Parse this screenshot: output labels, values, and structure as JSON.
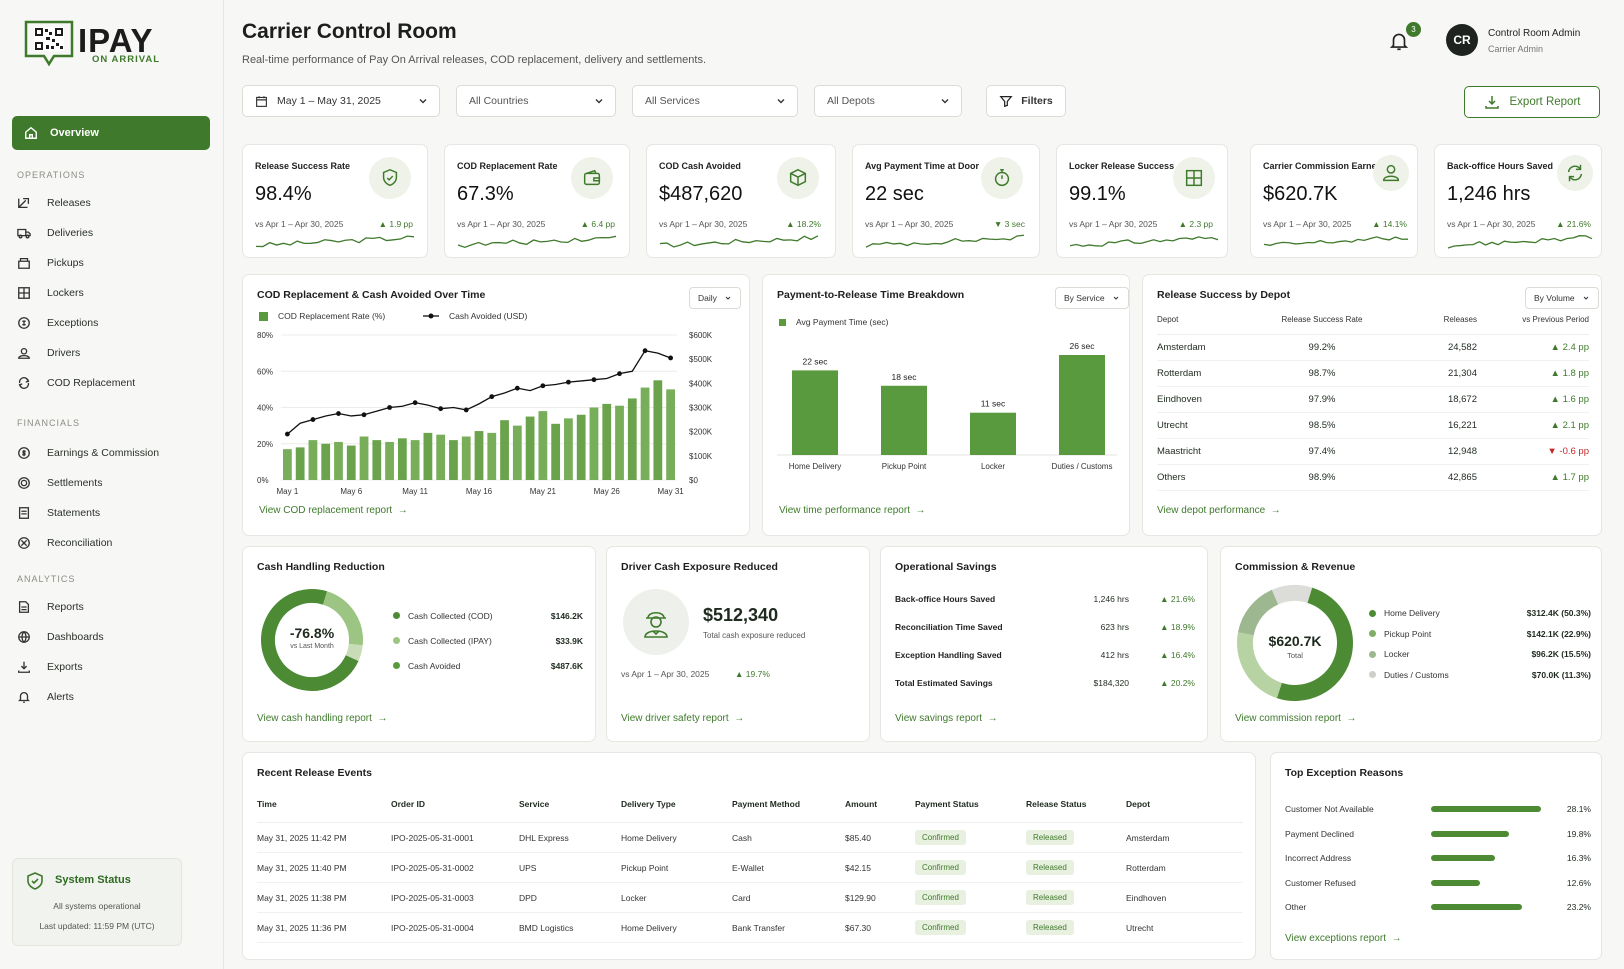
{
  "brand": {
    "name": "IPAY",
    "tagline": "ON ARRIVAL"
  },
  "nav": {
    "overview": "Overview",
    "sections": [
      {
        "label": "OPERATIONS",
        "items": [
          "Releases",
          "Deliveries",
          "Pickups",
          "Lockers",
          "Exceptions",
          "Drivers",
          "COD Replacement"
        ]
      },
      {
        "label": "FINANCIALS",
        "items": [
          "Earnings & Commission",
          "Settlements",
          "Statements",
          "Reconciliation"
        ]
      },
      {
        "label": "ANALYTICS",
        "items": [
          "Reports",
          "Dashboards",
          "Exports",
          "Alerts"
        ]
      }
    ]
  },
  "system_status": {
    "title": "System Status",
    "text": "All systems operational",
    "updated": "Last updated: 11:59 PM (UTC)"
  },
  "header": {
    "title": "Carrier Control Room",
    "subtitle": "Real-time performance of Pay On Arrival releases, COD replacement, delivery and settlements.",
    "notifications": "3",
    "user": {
      "initials": "CR",
      "name": "Control Room Admin",
      "role": "Carrier Admin"
    }
  },
  "filters": {
    "date": "May 1 – May 31, 2025",
    "country": "All Countries",
    "service": "All Services",
    "depot": "All Depots",
    "filters_label": "Filters",
    "export_label": "Export Report"
  },
  "kpis": [
    {
      "title": "Release Success Rate",
      "value": "98.4%",
      "compare": "vs Apr 1 – Apr 30, 2025",
      "delta": "▲ 1.9 pp",
      "icon": "shield-check-icon"
    },
    {
      "title": "COD Replacement Rate",
      "value": "67.3%",
      "compare": "vs Apr 1 – Apr 30, 2025",
      "delta": "▲ 6.4 pp",
      "icon": "wallet-icon"
    },
    {
      "title": "COD Cash Avoided",
      "value": "$487,620",
      "compare": "vs Apr 1 – Apr 30, 2025",
      "delta": "▲ 18.2%",
      "icon": "box-icon"
    },
    {
      "title": "Avg Payment Time at Door",
      "value": "22 sec",
      "compare": "vs Apr 1 – Apr 30, 2025",
      "delta": "▼ 3 sec",
      "icon": "timer-icon"
    },
    {
      "title": "Locker Release Success",
      "value": "99.1%",
      "compare": "vs Apr 1 – Apr 30, 2025",
      "delta": "▲ 2.3 pp",
      "icon": "locker-icon"
    },
    {
      "title": "Carrier Commission Earned",
      "value": "$620.7K",
      "compare": "vs Apr 1 – Apr 30, 2025",
      "delta": "▲ 14.1%",
      "icon": "user-icon"
    },
    {
      "title": "Back-office Hours Saved",
      "value": "1,246 hrs",
      "compare": "vs Apr 1 – Apr 30, 2025",
      "delta": "▲ 21.6%",
      "icon": "refresh-icon"
    }
  ],
  "cod_chart": {
    "title": "COD Replacement & Cash Avoided Over Time",
    "period": "Daily",
    "legend_bar": "COD Replacement Rate (%)",
    "legend_line": "Cash Avoided (USD)",
    "y_left": [
      "80%",
      "60%",
      "40%",
      "20%",
      "0%"
    ],
    "y_right": [
      "$600K",
      "$500K",
      "$400K",
      "$300K",
      "$200K",
      "$100K",
      "$0"
    ],
    "x_labels": [
      "May 1",
      "May 6",
      "May 11",
      "May 16",
      "May 21",
      "May 26",
      "May 31"
    ],
    "link": "View COD replacement report"
  },
  "chart_data": [
    {
      "type": "bar",
      "title": "COD Replacement & Cash Avoided Over Time",
      "categories": [
        "1",
        "2",
        "3",
        "4",
        "5",
        "6",
        "7",
        "8",
        "9",
        "10",
        "11",
        "12",
        "13",
        "14",
        "15",
        "16",
        "17",
        "18",
        "19",
        "20",
        "21",
        "22",
        "23",
        "24",
        "25",
        "26",
        "27",
        "28",
        "29",
        "30",
        "31"
      ],
      "series": [
        {
          "name": "COD Replacement Rate (%)",
          "axis": "left",
          "values": [
            17,
            18,
            22,
            20,
            21,
            19,
            24,
            22,
            21,
            23,
            22,
            26,
            25,
            22,
            24,
            27,
            26,
            33,
            30,
            35,
            38,
            31,
            34,
            36,
            40,
            42,
            41,
            45,
            51,
            55,
            50
          ]
        },
        {
          "name": "Cash Avoided (USD)",
          "type": "line",
          "axis": "right",
          "values": [
            190000,
            235000,
            250000,
            265000,
            275000,
            265000,
            270000,
            285000,
            300000,
            305000,
            320000,
            310000,
            295000,
            300000,
            290000,
            315000,
            345000,
            360000,
            380000,
            370000,
            390000,
            395000,
            405000,
            410000,
            415000,
            420000,
            440000,
            450000,
            535000,
            525000,
            505000
          ]
        }
      ],
      "ylim_left": [
        0,
        80
      ],
      "ylim_right": [
        0,
        600000
      ]
    },
    {
      "type": "bar",
      "title": "Payment-to-Release Time Breakdown",
      "categories": [
        "Home Delivery",
        "Pickup Point",
        "Locker",
        "Duties / Customs"
      ],
      "series": [
        {
          "name": "Avg Payment Time (sec)",
          "values": [
            22,
            18,
            11,
            26
          ]
        }
      ],
      "value_labels": [
        "22 sec",
        "18 sec",
        "11 sec",
        "26 sec"
      ]
    },
    {
      "type": "pie",
      "title": "Cash Handling Reduction",
      "categories": [
        "Cash Collected (COD)",
        "Cash Collected (IPAY)",
        "Cash Avoided"
      ],
      "values": [
        146.2,
        33.9,
        487.6
      ]
    },
    {
      "type": "pie",
      "title": "Commission & Revenue",
      "categories": [
        "Home Delivery",
        "Pickup Point",
        "Locker",
        "Duties / Customs"
      ],
      "values": [
        50.3,
        22.9,
        15.5,
        11.3
      ]
    },
    {
      "type": "bar",
      "title": "Top Exception Reasons",
      "categories": [
        "Customer Not Available",
        "Payment Declined",
        "Incorrect Address",
        "Customer Refused",
        "Other"
      ],
      "values": [
        28.1,
        19.8,
        16.3,
        12.6,
        23.2
      ]
    }
  ],
  "time_chart": {
    "title": "Payment-to-Release Time Breakdown",
    "mode": "By Service",
    "legend": "Avg Payment Time (sec)",
    "link": "View time performance report"
  },
  "depot": {
    "title": "Release Success by Depot",
    "mode": "By Volume",
    "headers": [
      "Depot",
      "Release Success Rate",
      "Releases",
      "vs Previous Period"
    ],
    "rows": [
      [
        "Amsterdam",
        "99.2%",
        "24,582",
        "▲ 2.4 pp"
      ],
      [
        "Rotterdam",
        "98.7%",
        "21,304",
        "▲ 1.8 pp"
      ],
      [
        "Eindhoven",
        "97.9%",
        "18,672",
        "▲ 1.6 pp"
      ],
      [
        "Utrecht",
        "98.5%",
        "16,221",
        "▲ 2.1 pp"
      ],
      [
        "Maastricht",
        "97.4%",
        "12,948",
        "▼ -0.6 pp"
      ],
      [
        "Others",
        "98.9%",
        "42,865",
        "▲ 1.7 pp"
      ]
    ],
    "link": "View depot performance"
  },
  "cash": {
    "title": "Cash Handling Reduction",
    "center": "-76.8%",
    "center_sub": "vs Last Month",
    "items": [
      [
        "Cash Collected (COD)",
        "$146.2K"
      ],
      [
        "Cash Collected (IPAY)",
        "$33.9K"
      ],
      [
        "Cash Avoided",
        "$487.6K"
      ]
    ],
    "link": "View cash handling report"
  },
  "driver": {
    "title": "Driver Cash Exposure Reduced",
    "value": "$512,340",
    "sub": "Total cash exposure reduced",
    "compare": "vs Apr 1 – Apr 30, 2025",
    "delta": "▲ 19.7%",
    "link": "View driver safety report"
  },
  "savings": {
    "title": "Operational Savings",
    "rows": [
      [
        "Back-office Hours Saved",
        "1,246 hrs",
        "▲ 21.6%"
      ],
      [
        "Reconciliation Time Saved",
        "623 hrs",
        "▲ 18.9%"
      ],
      [
        "Exception Handling Saved",
        "412 hrs",
        "▲ 16.4%"
      ],
      [
        "Total Estimated Savings",
        "$184,320",
        "▲ 20.2%"
      ]
    ],
    "link": "View savings report"
  },
  "commission": {
    "title": "Commission & Revenue",
    "center": "$620.7K",
    "center_sub": "Total",
    "items": [
      [
        "Home Delivery",
        "$312.4K (50.3%)"
      ],
      [
        "Pickup Point",
        "$142.1K (22.9%)"
      ],
      [
        "Locker",
        "$96.2K (15.5%)"
      ],
      [
        "Duties / Customs",
        "$70.0K (11.3%)"
      ]
    ],
    "link": "View commission report"
  },
  "events": {
    "title": "Recent Release Events",
    "headers": [
      "Time",
      "Order ID",
      "Service",
      "Delivery Type",
      "Payment Method",
      "Amount",
      "Payment Status",
      "Release Status",
      "Depot"
    ],
    "rows": [
      [
        "May 31, 2025 11:42 PM",
        "IPO-2025-05-31-0001",
        "DHL Express",
        "Home Delivery",
        "Cash",
        "$85.40",
        "Confirmed",
        "Released",
        "Amsterdam"
      ],
      [
        "May 31, 2025 11:40 PM",
        "IPO-2025-05-31-0002",
        "UPS",
        "Pickup Point",
        "E-Wallet",
        "$42.15",
        "Confirmed",
        "Released",
        "Rotterdam"
      ],
      [
        "May 31, 2025 11:38 PM",
        "IPO-2025-05-31-0003",
        "DPD",
        "Locker",
        "Card",
        "$129.90",
        "Confirmed",
        "Released",
        "Eindhoven"
      ],
      [
        "May 31, 2025 11:36 PM",
        "IPO-2025-05-31-0004",
        "BMD Logistics",
        "Home Delivery",
        "Bank Transfer",
        "$67.30",
        "Confirmed",
        "Released",
        "Utrecht"
      ]
    ]
  },
  "exceptions": {
    "title": "Top Exception Reasons",
    "rows": [
      [
        "Customer Not Available",
        "28.1%"
      ],
      [
        "Payment Declined",
        "19.8%"
      ],
      [
        "Incorrect Address",
        "16.3%"
      ],
      [
        "Customer Refused",
        "12.6%"
      ],
      [
        "Other",
        "23.2%"
      ]
    ],
    "link": "View exceptions report"
  },
  "colors": {
    "accent": "#3f7a2c",
    "accent_light": "#8fbf74",
    "accent_pale": "#c9dcb8",
    "negative": "#c62828"
  }
}
